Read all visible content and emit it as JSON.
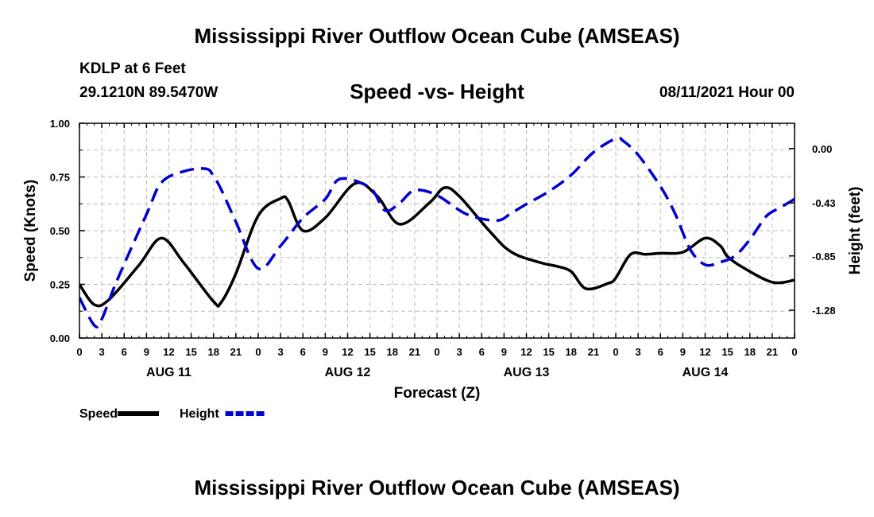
{
  "page": {
    "title_top": "Mississippi River Outflow Ocean Cube (AMSEAS)",
    "title_bottom": "Mississippi River Outflow Ocean Cube (AMSEAS)",
    "station": "KDLP at 6 Feet",
    "coords": "29.1210N  89.5470W",
    "subtitle": "Speed -vs- Height",
    "datetime": "08/11/2021 Hour 00"
  },
  "chart_data": {
    "type": "line",
    "title": "Speed -vs- Height",
    "xlabel": "Forecast (Z)",
    "ylabel": "Speed (Knots)",
    "y2label": "Height (feet)",
    "xlim": [
      0,
      96
    ],
    "ylim": [
      0,
      1
    ],
    "y2lim": [
      -1.5,
      0.2
    ],
    "x_ticks": [
      0,
      3,
      6,
      9,
      12,
      15,
      18,
      21,
      24,
      27,
      30,
      33,
      36,
      39,
      42,
      45,
      48,
      51,
      54,
      57,
      60,
      63,
      66,
      69,
      72,
      75,
      78,
      81,
      84,
      87,
      90,
      93,
      96
    ],
    "x_tick_labels": [
      "0",
      "3",
      "6",
      "9",
      "12",
      "15",
      "18",
      "21",
      "0",
      "3",
      "6",
      "9",
      "12",
      "15",
      "18",
      "21",
      "0",
      "3",
      "6",
      "9",
      "12",
      "15",
      "18",
      "21",
      "0",
      "3",
      "6",
      "9",
      "12",
      "15",
      "18",
      "21",
      "0"
    ],
    "date_labels": [
      {
        "x": 12,
        "label": "AUG 11"
      },
      {
        "x": 36,
        "label": "AUG 12"
      },
      {
        "x": 60,
        "label": "AUG 13"
      },
      {
        "x": 84,
        "label": "AUG 14"
      }
    ],
    "y_ticks": [
      0,
      0.25,
      0.5,
      0.75,
      1.0
    ],
    "y_tick_labels": [
      "0.00",
      "0.25",
      "0.50",
      "0.75",
      "1.00"
    ],
    "y2_ticks": [
      0.0,
      -0.43,
      -0.85,
      -1.28
    ],
    "y2_tick_labels": [
      "0.00",
      "-0.43",
      "-0.85",
      "-1.28"
    ],
    "grid": true,
    "legend": "bottom-left",
    "series": [
      {
        "name": "Speed",
        "axis": "left",
        "color": "#000000",
        "style": "solid",
        "x": [
          0,
          2,
          4,
          8,
          11,
          14,
          18,
          19,
          21,
          24,
          27,
          28,
          30,
          33,
          37,
          40,
          43,
          47,
          49,
          51,
          55,
          58,
          62,
          64,
          66,
          68,
          71,
          72,
          74,
          76,
          78,
          81,
          84,
          86,
          87,
          89,
          93,
          96
        ],
        "values": [
          0.25,
          0.155,
          0.18,
          0.34,
          0.465,
          0.35,
          0.17,
          0.165,
          0.3,
          0.57,
          0.65,
          0.64,
          0.5,
          0.56,
          0.72,
          0.66,
          0.53,
          0.63,
          0.7,
          0.66,
          0.5,
          0.4,
          0.35,
          0.335,
          0.31,
          0.23,
          0.255,
          0.28,
          0.39,
          0.39,
          0.395,
          0.4,
          0.465,
          0.43,
          0.38,
          0.33,
          0.26,
          0.27
        ]
      },
      {
        "name": "Height",
        "axis": "right",
        "color": "#0000cc",
        "style": "dashed",
        "x": [
          0,
          2,
          3,
          5,
          9,
          11,
          14,
          17,
          18,
          19,
          21,
          24,
          27,
          30,
          33,
          35,
          39,
          41,
          43,
          45,
          48,
          52,
          56,
          58,
          60,
          63,
          66,
          69,
          72,
          73,
          75,
          78,
          80,
          82,
          84,
          86,
          88,
          90,
          92,
          93,
          94,
          96
        ],
        "values": [
          -1.18,
          -1.4,
          -1.35,
          -1.05,
          -0.52,
          -0.27,
          -0.18,
          -0.16,
          -0.22,
          -0.32,
          -0.58,
          -0.95,
          -0.77,
          -0.55,
          -0.4,
          -0.24,
          -0.31,
          -0.49,
          -0.43,
          -0.33,
          -0.37,
          -0.52,
          -0.57,
          -0.51,
          -0.44,
          -0.34,
          -0.21,
          -0.03,
          0.08,
          0.06,
          -0.05,
          -0.3,
          -0.52,
          -0.8,
          -0.92,
          -0.9,
          -0.85,
          -0.72,
          -0.55,
          -0.5,
          -0.47,
          -0.4
        ]
      }
    ]
  }
}
